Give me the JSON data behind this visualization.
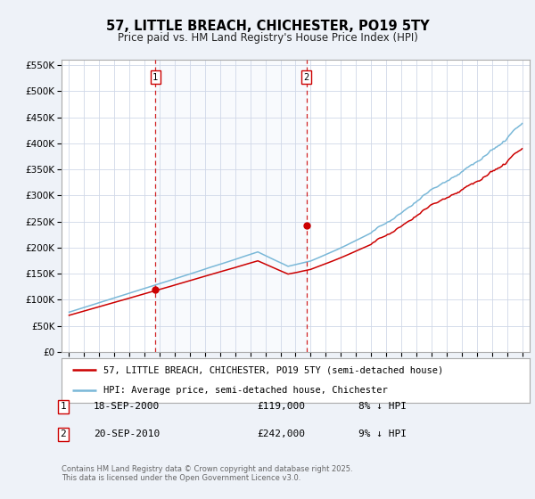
{
  "title": "57, LITTLE BREACH, CHICHESTER, PO19 5TY",
  "subtitle": "Price paid vs. HM Land Registry's House Price Index (HPI)",
  "legend_line1": "57, LITTLE BREACH, CHICHESTER, PO19 5TY (semi-detached house)",
  "legend_line2": "HPI: Average price, semi-detached house, Chichester",
  "footer": "Contains HM Land Registry data © Crown copyright and database right 2025.\nThis data is licensed under the Open Government Licence v3.0.",
  "sale1_date": "18-SEP-2000",
  "sale1_price": "£119,000",
  "sale1_hpi": "8% ↓ HPI",
  "sale1_year": 2000.72,
  "sale1_value": 119000,
  "sale2_date": "20-SEP-2010",
  "sale2_price": "£242,000",
  "sale2_hpi": "9% ↓ HPI",
  "sale2_year": 2010.72,
  "sale2_value": 242000,
  "vline1_x": 2000.72,
  "vline2_x": 2010.72,
  "hpi_color": "#7ab8d8",
  "price_color": "#cc0000",
  "vline_color": "#cc0000",
  "background_color": "#eef2f8",
  "plot_background": "#ffffff",
  "ylim": [
    0,
    560000
  ],
  "yticks": [
    0,
    50000,
    100000,
    150000,
    200000,
    250000,
    300000,
    350000,
    400000,
    450000,
    500000,
    550000
  ],
  "xlim": [
    1994.5,
    2025.5
  ],
  "xticks": [
    1995,
    1996,
    1997,
    1998,
    1999,
    2000,
    2001,
    2002,
    2003,
    2004,
    2005,
    2006,
    2007,
    2008,
    2009,
    2010,
    2011,
    2012,
    2013,
    2014,
    2015,
    2016,
    2017,
    2018,
    2019,
    2020,
    2021,
    2022,
    2023,
    2024,
    2025
  ]
}
